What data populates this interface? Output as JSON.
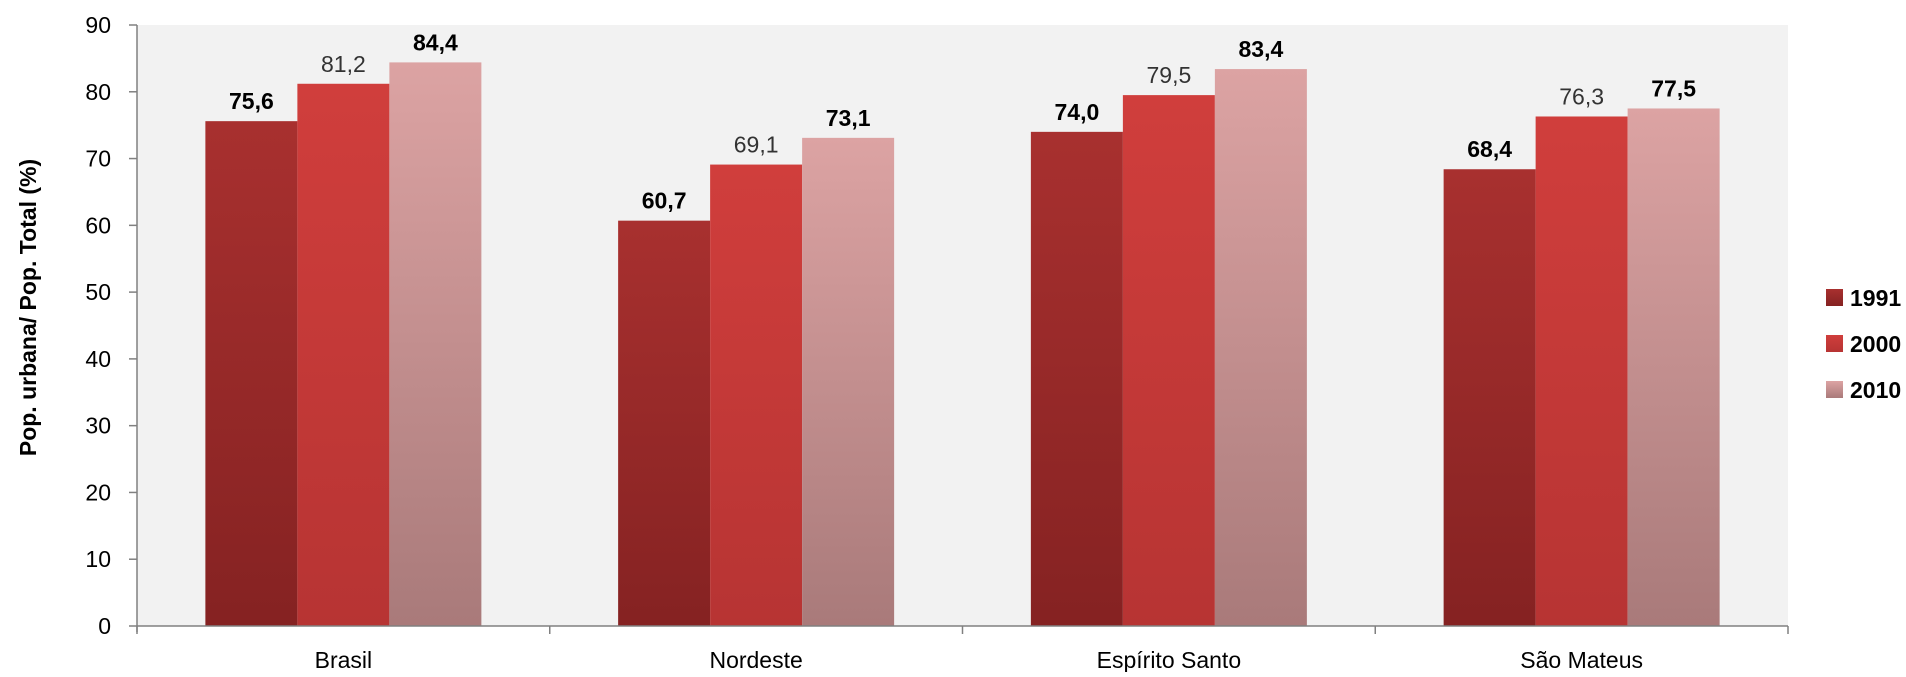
{
  "chart_data": {
    "type": "bar",
    "categories": [
      "Brasil",
      "Nordeste",
      "Espírito Santo",
      "São Mateus"
    ],
    "series": [
      {
        "name": "1991",
        "values": [
          75.6,
          60.7,
          74.0,
          68.4
        ],
        "labels": [
          "75,6",
          "60,7",
          "74,0",
          "68,4"
        ],
        "label_bold": true,
        "color": "#a8302f",
        "color_dark": "#852222"
      },
      {
        "name": "2000",
        "values": [
          81.2,
          69.1,
          79.5,
          76.3
        ],
        "labels": [
          "81,2",
          "69,1",
          "79,5",
          "76,3"
        ],
        "label_bold": false,
        "color": "#d03e3c",
        "color_dark": "#b73433"
      },
      {
        "name": "2010",
        "values": [
          84.4,
          73.1,
          83.4,
          77.5
        ],
        "labels": [
          "84,4",
          "73,1",
          "83,4",
          "77,5"
        ],
        "label_bold": true,
        "color": "#dca3a3",
        "color_dark": "#a97a7a"
      }
    ],
    "ylabel": "Pop. urbana/ Pop. Total (%)",
    "xlabel": "",
    "title": "",
    "ylim": [
      0,
      90
    ],
    "yticks": [
      0,
      10,
      20,
      30,
      40,
      50,
      60,
      70,
      80,
      90
    ],
    "grid": false,
    "legend_position": "right",
    "plot_background": "#f2f2f2"
  }
}
